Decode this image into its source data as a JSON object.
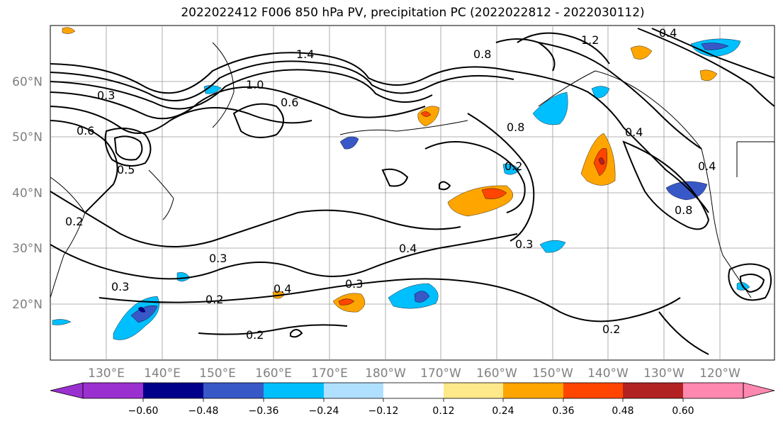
{
  "title": "2022022412 F006 850 hPa PV, precipitation PC (2022022812 - 2022030112)",
  "lat_labels": [
    "60°N",
    "50°N",
    "40°N",
    "30°N",
    "20°N"
  ],
  "lon_labels": [
    "130°E",
    "140°E",
    "150°E",
    "160°E",
    "170°E",
    "180°W",
    "170°W",
    "160°W",
    "150°W",
    "140°W",
    "130°W",
    "120°W"
  ],
  "contour_labels": [
    "1.0",
    "0.3",
    "0.6",
    "0.5",
    "0.2",
    "0.3",
    "0.2",
    "0.2",
    "0.4",
    "0.3",
    "0.4",
    "0.3",
    "0.8",
    "0.4",
    "0.4",
    "0.8",
    "0.2",
    "1.4",
    "1.2",
    "0.8",
    "0.4",
    "0.6",
    "0.3",
    "0.2"
  ],
  "colorbar": {
    "ticks": [
      "−0.60",
      "−0.48",
      "−0.36",
      "−0.24",
      "−0.12",
      "0.12",
      "0.24",
      "0.36",
      "0.48",
      "0.60"
    ],
    "colors": [
      "#9b30d0",
      "#00008b",
      "#3858c8",
      "#00bfff",
      "#b0e0ff",
      "#ffffff",
      "#ffe88a",
      "#ffa500",
      "#ff4500",
      "#b22222",
      "#ff88b0"
    ]
  }
}
